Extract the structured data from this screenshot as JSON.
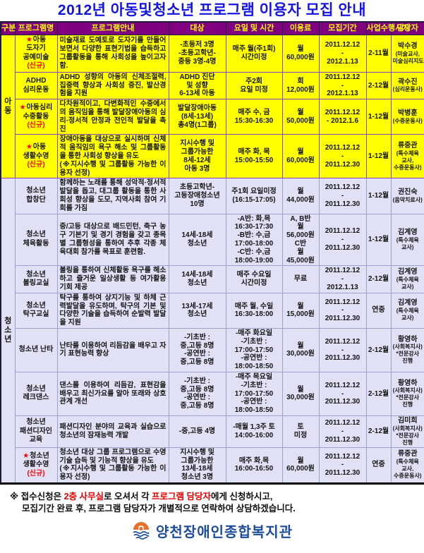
{
  "title": "2012년 아동및청소년 프로그램 이용자 모집 안내",
  "table": {
    "headers": [
      "구분",
      "프로그램명",
      "프로그램안내",
      "대상",
      "요일 및 시간",
      "이용료",
      "모집기간",
      "사업수행시기",
      "담당자"
    ],
    "groups": [
      {
        "label": "아동",
        "rows": 4
      },
      {
        "label": "청소년",
        "rows": 8
      }
    ],
    "rows": [
      {
        "star": "★",
        "name_lines": [
          "아동",
          "도자기",
          "공예미술"
        ],
        "is_new": "(신규)",
        "desc": "미술재료 도예토로 도자기를 만들어보면서 다양한 표현기법을 습득하고 그룹활동을 통해 사회성을 높이고자 함.",
        "target": [
          "-초등저 3명",
          "-초등고학년-",
          "중등 3명-4명"
        ],
        "schedule": [
          "매주 월(주1회)",
          "시간미정"
        ],
        "fee": [
          "월",
          "60,000원"
        ],
        "period": [
          "2011.12.12",
          "-",
          "2012.1.13"
        ],
        "season": "2-11월",
        "manager": {
          "name": "박수경",
          "note": "(미술교사, 미술심리지도사)",
          "extra": ""
        }
      },
      {
        "star": "",
        "name_lines": [
          "ADHD",
          "심리운동"
        ],
        "is_new": "",
        "desc": "ADHD 성향의 아동의 신체조절력, 집중력 향상과 사회성 증진, 발산경험을 지원",
        "target": [
          "ADHD 진단",
          "및 성향",
          "6-13세 아동"
        ],
        "schedule": [
          "주2회",
          "요일 미정"
        ],
        "fee": [
          "회",
          "12,000원"
        ],
        "period": [
          "2011.12.12",
          "-",
          "2012.1.13"
        ],
        "season": "2-12월",
        "manager": {
          "name": "곽수진",
          "note": "(심리운동사)",
          "extra": ""
        }
      },
      {
        "star": "★",
        "name_lines": [
          "아동심리",
          "수중활동"
        ],
        "is_new": "(신규)",
        "desc": "다차원적이고, 다변화적인 수중에서의 움직임을 통해 발달장애아동의 심리·정서적 안정과 전인적 발달을 촉진",
        "target": [
          "발달장애아동",
          "(8세-13세)",
          "총4명(1그룹)"
        ],
        "schedule": [
          "매주 수, 금",
          "15:30-16:30"
        ],
        "fee": [
          "월",
          "50,000원"
        ],
        "period": [
          "2011.12.12",
          "- 2012.1.6"
        ],
        "season": "1-12월",
        "manager": {
          "name": "박병훈",
          "note": "(수중운동사)",
          "extra": ""
        }
      },
      {
        "star": "★",
        "name_lines": [
          "아동",
          "생활수영"
        ],
        "is_new": "(신규)",
        "desc": "장애아동을 대상으로 실시하며 신체적 움직임의 욕구 해소 및 그룹활동을 통한 사회성 향상을 유도\n(※지시수행 및 그룹활동 가능한 이용자 선정)",
        "target": [
          "지시수행 및",
          "그룹가능한",
          "8세-12세",
          "아동 3명"
        ],
        "schedule": [
          "매주 화, 목",
          "15:00-15:50"
        ],
        "fee": [
          "월",
          "60,000원"
        ],
        "period": [
          "2011.12.12",
          "-",
          "2011.12.30"
        ],
        "season": "1-12월",
        "manager": {
          "name": "류중관",
          "note": "(특수체육 교사, 수중운동사)",
          "extra": ""
        }
      },
      {
        "star": "",
        "name_lines": [
          "청소년",
          "합창단"
        ],
        "is_new": "",
        "desc": "함께하는 노래를 통해 성악적·정서적 발달을 돕고, 대그룹 활동을 통한 사회성 향상을 도모, 지역사회 참여 기회를 가짐",
        "target": [
          "초등고학년-",
          "고등장애청소년",
          "10명"
        ],
        "schedule": [
          "주1회 요일미정",
          "(16:15-17:05)"
        ],
        "fee": [
          "월",
          "44,000원"
        ],
        "period": [
          "2011.12.12",
          "-",
          "2011.12.30"
        ],
        "season": "1-12월",
        "manager": {
          "name": "권진숙",
          "note": "(음악치료사)",
          "extra": ""
        }
      },
      {
        "star": "",
        "name_lines": [
          "청소년",
          "체육활동"
        ],
        "is_new": "",
        "desc": "중/고등 대상으로 배드민턴, 축구 농구 기본기 및 경기 경험을 갖고 종목별 그룹형성을 통하여 추후 각종 체육대회 참가를 목표로 훈련함.",
        "target": [
          "14세-18세",
          "청소년"
        ],
        "schedule": [
          "-A반: 화,목",
          "16:30-17:30",
          "-B반: 수,금",
          "17:00-18:00",
          "-C반: 수,금",
          "18:00-19:00"
        ],
        "fee": [
          "A, B반",
          "월",
          "56,000원",
          "C반",
          "월",
          "45,000원"
        ],
        "period": [
          "2011.12.12",
          "-",
          "2011.12.30"
        ],
        "season": "1-12월",
        "manager": {
          "name": "김계영",
          "note": "(특수체육 교사)",
          "extra": ""
        }
      },
      {
        "star": "",
        "name_lines": [
          "청소년",
          "볼링교실"
        ],
        "is_new": "",
        "desc": "볼링을 통하여 신체활동 욕구를 해소하고 즐거운 일상생활 등 여가활용 기회 제공",
        "target": [
          "14세-18세",
          "청소년"
        ],
        "schedule": [
          "매주 수요일",
          "시간미정"
        ],
        "fee": [
          "무료"
        ],
        "period": [
          "2011.12.12",
          "-",
          "2012.1.13"
        ],
        "season": "2-12월",
        "manager": {
          "name": "김계영",
          "note": "(특수체육 교사)",
          "extra": ""
        }
      },
      {
        "star": "",
        "name_lines": [
          "청소년",
          "탁구교실"
        ],
        "is_new": "",
        "desc": "탁구를 통하여 상지기능 및 하체 근력발달을 유도하며, 탁구의 기본 및 다양한 기술을 습득하여 순발력 발달을 지원",
        "target": [
          "13세-17세",
          "청소년"
        ],
        "schedule": [
          "매주 월, 수일",
          "16:30-18:00"
        ],
        "fee": [
          "월",
          "15,000원"
        ],
        "period": [
          "2011.12.12",
          "-",
          "2011.12.30"
        ],
        "season": "연중",
        "manager": {
          "name": "김계영",
          "note": "(특수체육 교사)",
          "extra": ""
        }
      },
      {
        "star": "",
        "name_lines": [
          "청소년 난타"
        ],
        "is_new": "",
        "desc": "난타를 이용하여 리듬감을 배우고 자기 표현능력 향상",
        "target": [
          "-기초반 :",
          "중,고등 8명",
          "-공연반 :",
          "중,고등 8명"
        ],
        "schedule": [
          "-매주 화요일",
          "-기초반 :",
          "17:00-17:50",
          "-공연반 :",
          "18:00-18:50"
        ],
        "fee": [
          "월",
          "30,000원"
        ],
        "period": [
          "2011.12.12",
          "-",
          "2011.12.30"
        ],
        "season": "2-12월",
        "manager": {
          "name": "황영하",
          "note": "(사회복지사)",
          "extra": "*전문강사 진행"
        }
      },
      {
        "star": "",
        "name_lines": [
          "청소년",
          "레크댄스"
        ],
        "is_new": "",
        "desc": "댄스를 이용하여 리듬감, 표현감을 배우고 최신가요를 알아 또래와 상호관계 개선",
        "target": [
          "-기초반 :",
          "중,고등 8명",
          "-공연반 :",
          "중,고등 8명"
        ],
        "schedule": [
          "-매주 목요일",
          "-기초반 :",
          "17:00-17:50",
          "-공연반 :",
          "18:00-18:50"
        ],
        "fee": [
          "월",
          "30,000원"
        ],
        "period": [
          "2011.12.12",
          "-",
          "2011.12.30"
        ],
        "season": "2-12월",
        "manager": {
          "name": "황영하",
          "note": "(사회복지사)",
          "extra": "*전문강사 진행"
        }
      },
      {
        "star": "",
        "name_lines": [
          "청소년",
          "패션디자인",
          "교육"
        ],
        "is_new": "",
        "desc": "패션디자인 분야의 교육과 실습으로 청소년의 잠재능력 개발",
        "target": [
          "-중,고등 4명"
        ],
        "schedule": [
          "-매월 1,3주 토",
          "14:00-16:00"
        ],
        "fee": [
          "토",
          "미정"
        ],
        "period": [
          "2011.12.12",
          "-",
          "2011.12.30"
        ],
        "season": "2-12월",
        "manager": {
          "name": "김미희",
          "note": "(사회복지사)",
          "extra": "*전문강사 진행"
        }
      },
      {
        "star": "★",
        "name_lines": [
          "청소년",
          "생활수영"
        ],
        "is_new": "(신규)",
        "desc": "청소년 대상 그룹 프로그램으로 수영 기술 습득 및 기능적 향상을 유도\n(※지시수행 및 그룹활동 가능한 이용자 선정)",
        "target": [
          "지시수행 및",
          "그룹가능한",
          "13세-18세",
          "청소년 3명"
        ],
        "schedule": [
          "매주 화,목",
          "16:00-16:50"
        ],
        "fee": [
          "월",
          "60,000원"
        ],
        "period": [
          "2011.12.12",
          "-",
          "2011.12.30"
        ],
        "season": "연중",
        "manager": {
          "name": "류중관",
          "note": "(특수체육 교사, 수중운동사)",
          "extra": ""
        }
      }
    ]
  },
  "footer": {
    "p1": "※ 접수신청은 ",
    "red1": "2층 사무실",
    "p2": "로 오셔서 각 ",
    "red2": "프로그램 담당자",
    "p3": "에게 신청하시고,",
    "line2": "모집기간 완료 후, 프로그램 담당자가 개별적으로 연락하여 상담하겠습니다."
  },
  "logo": {
    "name": "양천장애인종합복지관"
  },
  "colors": {
    "title_blue": "#1414e6",
    "header_bg": "#800080",
    "header_text": "#ffff00",
    "child_section_bg": "#ffff00",
    "youth_section_bg": "#e0e1f4",
    "accent_red": "#ff0000",
    "logo_blue": "#1b4c9c",
    "logo_orange": "#e8702a"
  }
}
